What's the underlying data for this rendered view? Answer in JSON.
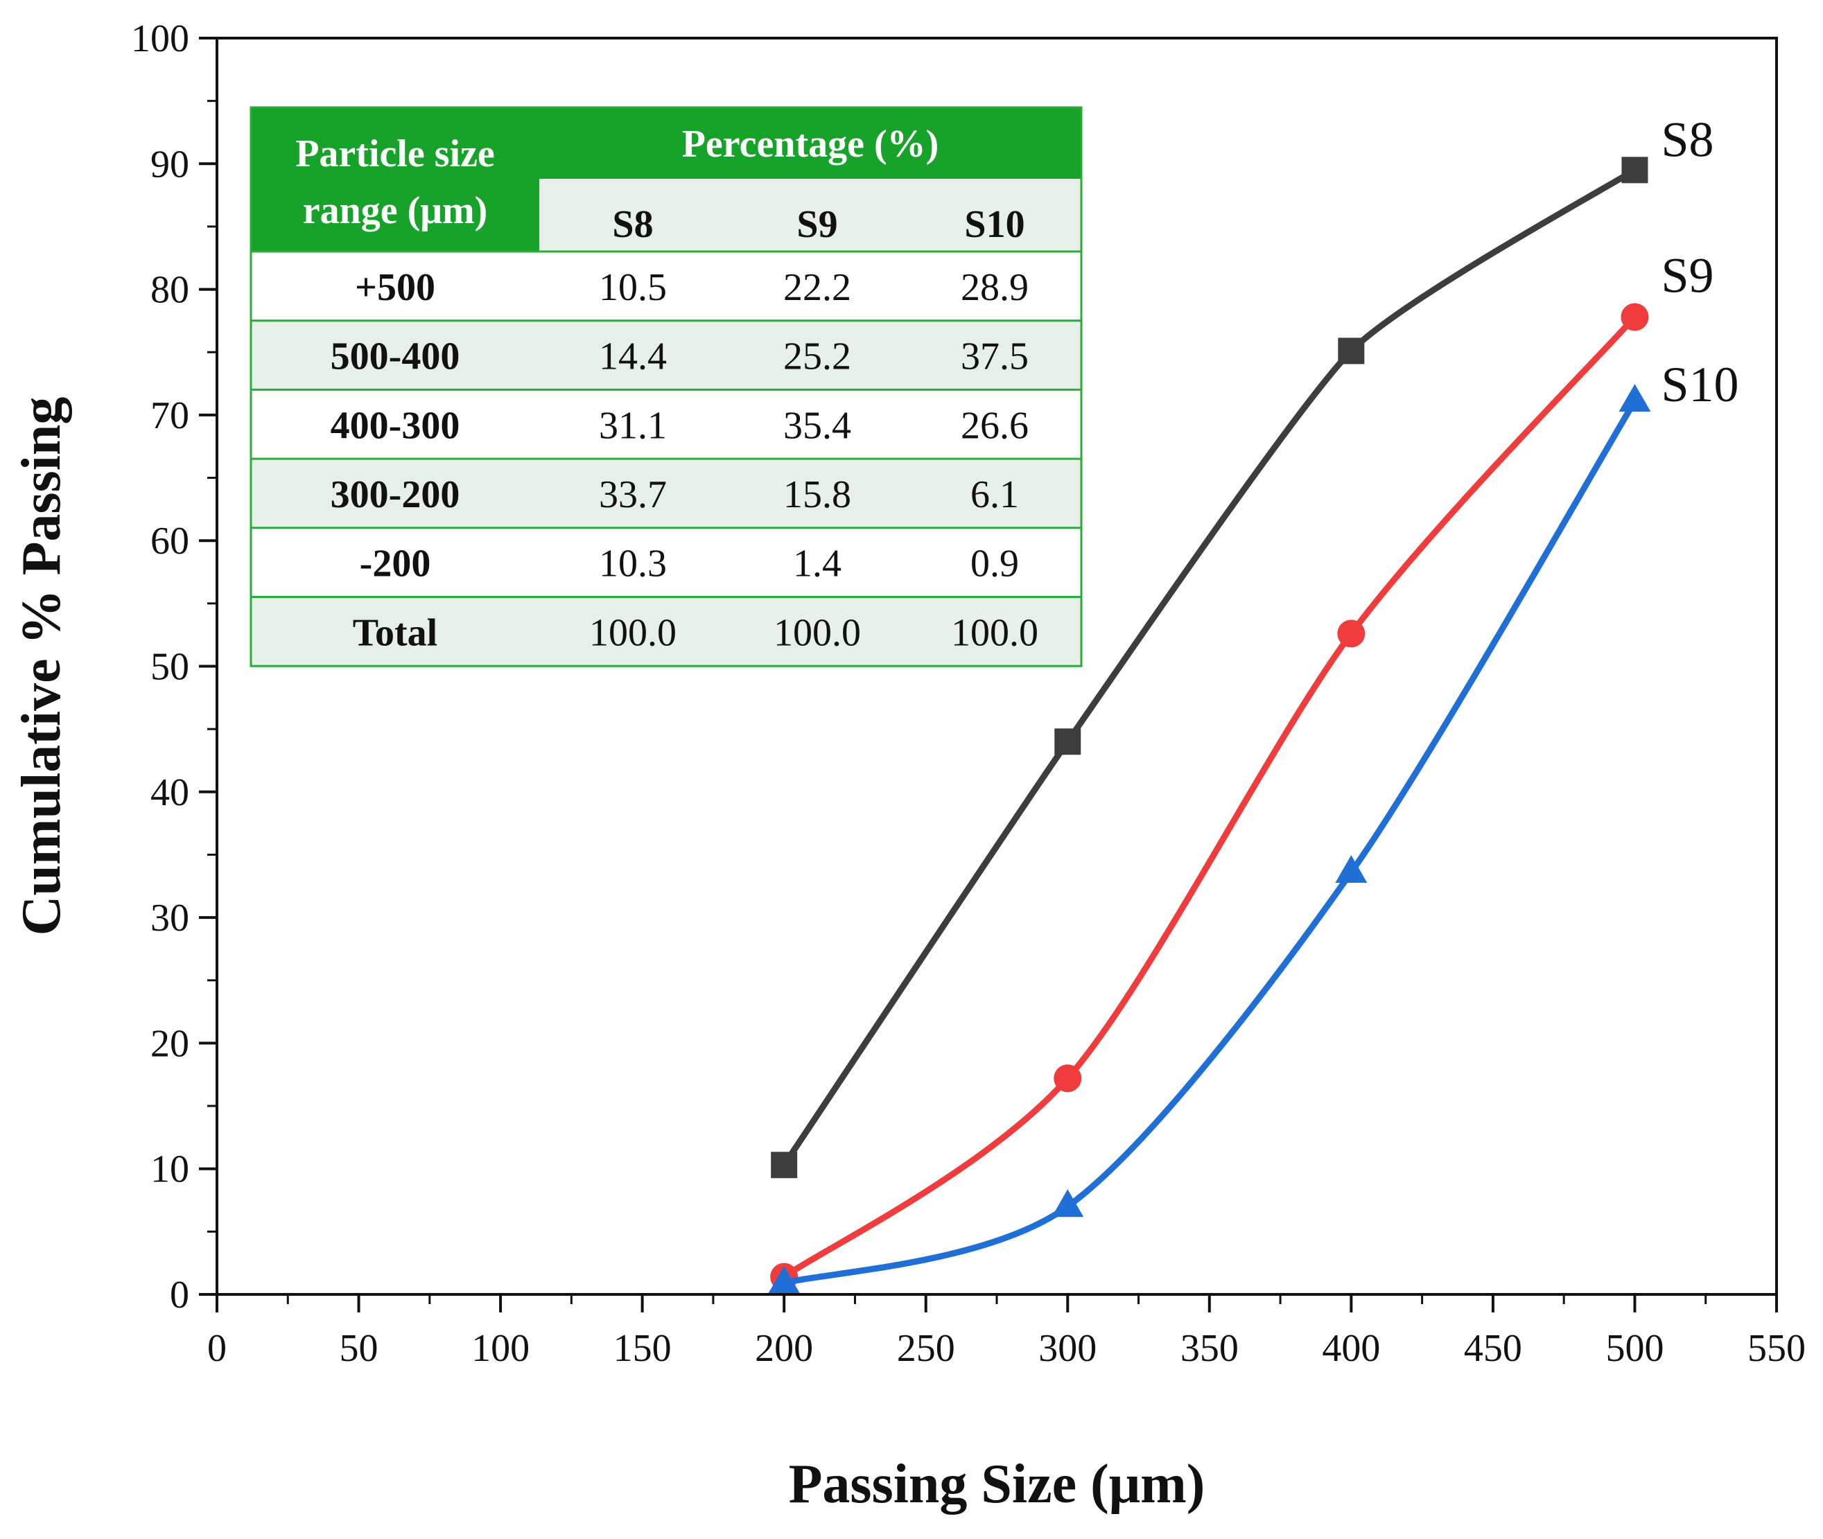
{
  "chart_data": {
    "type": "line",
    "title": "",
    "xlabel": "Passing Size (μm)",
    "ylabel": "Cumulative % Passing",
    "xlim": [
      0,
      550
    ],
    "ylim": [
      0,
      100
    ],
    "x_ticks": [
      "0",
      "50",
      "100",
      "150",
      "200",
      "250",
      "300",
      "350",
      "400",
      "450",
      "500",
      "550"
    ],
    "y_ticks": [
      "0",
      "10",
      "20",
      "30",
      "40",
      "50",
      "60",
      "70",
      "80",
      "90",
      "100"
    ],
    "x": [
      200,
      300,
      400,
      500
    ],
    "series": [
      {
        "name": "S8",
        "values": [
          10.3,
          44.0,
          75.1,
          89.5
        ],
        "color": "#3d3d3d",
        "marker": "square"
      },
      {
        "name": "S9",
        "values": [
          1.4,
          17.2,
          52.6,
          77.8
        ],
        "color": "#f03c3c",
        "marker": "circle"
      },
      {
        "name": "S10",
        "values": [
          0.9,
          7.0,
          33.6,
          71.1
        ],
        "color": "#1f6fd6",
        "marker": "triangle"
      }
    ],
    "table": {
      "header_first": "Particle size range (μm)",
      "header_first_lines": [
        "Particle size",
        "range (μm)"
      ],
      "header_group": "Percentage (%)",
      "columns": [
        "S8",
        "S9",
        "S10"
      ],
      "rows": [
        {
          "label": "+500",
          "values": [
            "10.5",
            "22.2",
            "28.9"
          ]
        },
        {
          "label": "500-400",
          "values": [
            "14.4",
            "25.2",
            "37.5"
          ]
        },
        {
          "label": "400-300",
          "values": [
            "31.1",
            "35.4",
            "26.6"
          ]
        },
        {
          "label": "300-200",
          "values": [
            "33.7",
            "15.8",
            "6.1"
          ]
        },
        {
          "label": "-200",
          "values": [
            "10.3",
            "1.4",
            "0.9"
          ]
        },
        {
          "label": "Total",
          "values": [
            "100.0",
            "100.0",
            "100.0"
          ]
        }
      ],
      "header_color": "#17a32a",
      "border_color": "#2aab3a",
      "stripe_color": "#e6efe8"
    }
  }
}
